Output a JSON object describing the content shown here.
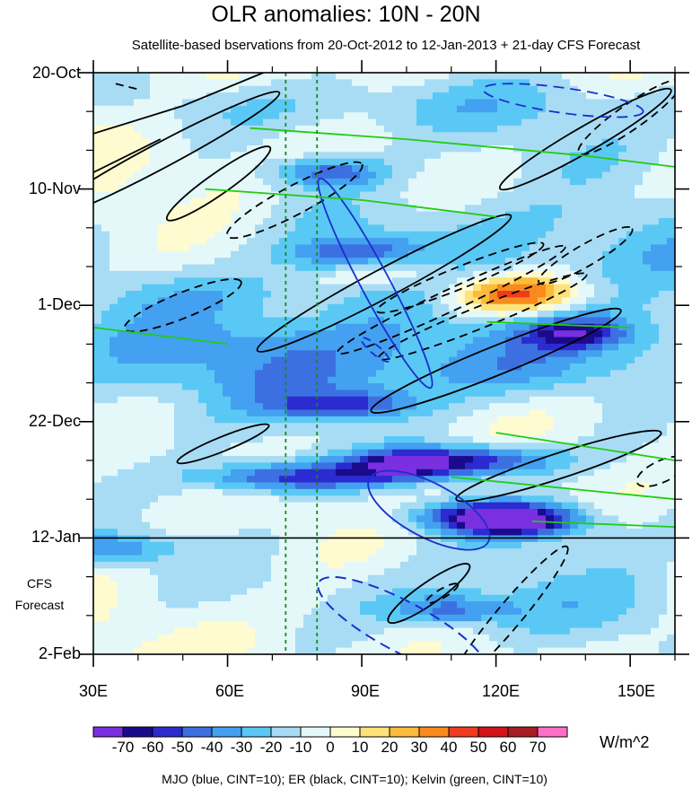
{
  "chart_data": {
    "type": "heatmap",
    "title": "OLR anomalies: 10N - 20N",
    "subtitle": "Satellite-based bservations from 20-Oct-2012 to 12-Jan-2013 + 21-day CFS Forecast",
    "x_axis": {
      "ticks": [
        "30E",
        "60E",
        "90E",
        "120E",
        "150E"
      ],
      "tick_values": [
        30,
        60,
        90,
        120,
        150
      ],
      "range": [
        30,
        160
      ],
      "units": "degrees longitude"
    },
    "y_axis": {
      "ticks": [
        "20-Oct",
        "10-Nov",
        "1-Dec",
        "22-Dec",
        "12-Jan",
        "2-Feb"
      ],
      "tick_days": [
        0,
        21,
        42,
        63,
        84,
        105
      ],
      "range_days": [
        0,
        105
      ],
      "direction": "time increases downward"
    },
    "forecast_label": [
      "CFS",
      "Forecast"
    ],
    "forecast_start_day": 84,
    "reference_longitudes": [
      73,
      80
    ],
    "colorbar": {
      "tick_labels": [
        "-70",
        "-60",
        "-50",
        "-40",
        "-30",
        "-20",
        "-10",
        "0",
        "10",
        "20",
        "30",
        "40",
        "50",
        "60",
        "70"
      ],
      "levels": [
        -70,
        -60,
        -50,
        -40,
        -30,
        -20,
        -10,
        0,
        10,
        20,
        30,
        40,
        50,
        60,
        70
      ],
      "colors": [
        "#7a2fe0",
        "#1a0a8c",
        "#2b2bd0",
        "#3c70e0",
        "#44a0f0",
        "#5ac8f5",
        "#a8dcf5",
        "#e4f8fa",
        "#fffbd0",
        "#ffe27a",
        "#fdbb3c",
        "#f98b1e",
        "#f03b1e",
        "#d4121a",
        "#a81c24",
        "#ff6fc7"
      ],
      "units": "W/m^2"
    },
    "contour_legend": "MJO (blue, CINT=10); ER (black, CINT=10); Kelvin (green, CINT=10)",
    "series": [
      {
        "name": "MJO",
        "color": "#1a2fcc",
        "cint": 10
      },
      {
        "name": "ER",
        "color": "#000000",
        "cint": 10
      },
      {
        "name": "Kelvin",
        "color": "#22cc11",
        "cint": 10
      }
    ]
  }
}
